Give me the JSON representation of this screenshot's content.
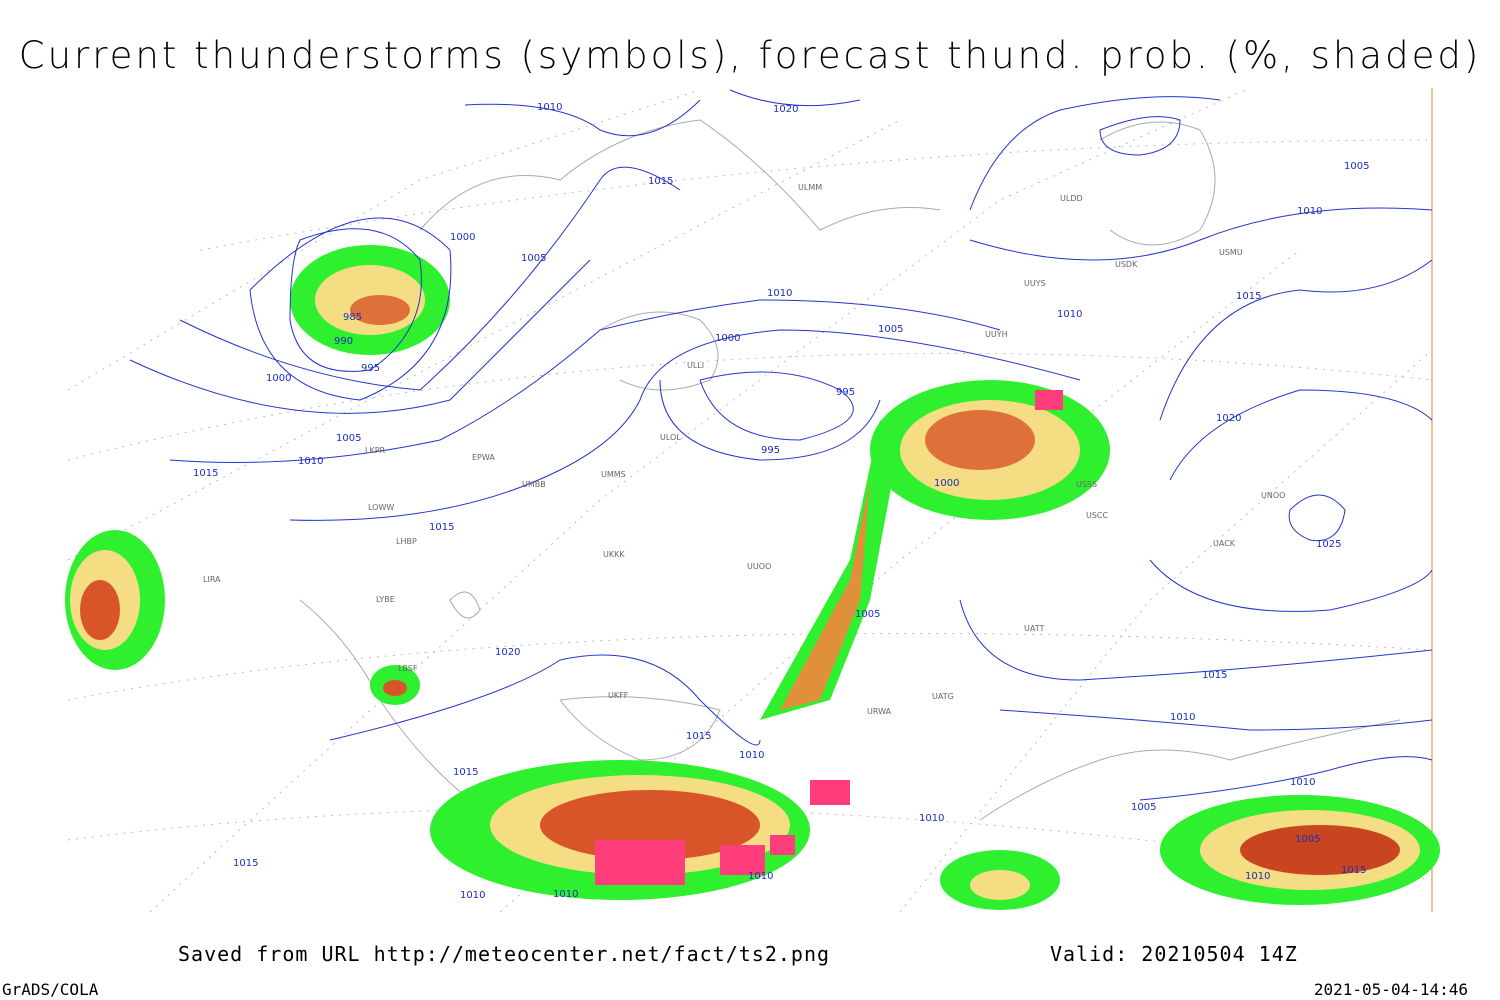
{
  "header": {
    "title": "Current thunderstorms (symbols), forecast thund. prob. (%, shaded)"
  },
  "isobar_labels": [
    "1010",
    "1020",
    "1015",
    "1000",
    "1005",
    "985",
    "990",
    "995",
    "1000",
    "1005",
    "1010",
    "1015",
    "1015",
    "1010",
    "1005",
    "1010",
    "1000",
    "995",
    "995",
    "1000",
    "1005",
    "1020",
    "1015",
    "1010",
    "1015",
    "1015",
    "1010",
    "1010",
    "1010",
    "1010",
    "1005",
    "1010",
    "1015",
    "1020",
    "1015",
    "1010",
    "1005",
    "1025",
    "1010",
    "1015",
    "1005",
    "1010"
  ],
  "stations": [
    "ULMM",
    "ULDD",
    "USDK",
    "USMU",
    "UUYS",
    "UUYH",
    "ULLI",
    "ULOL",
    "UMMS",
    "UMBB",
    "EPWA",
    "LKPR",
    "LOWW",
    "LHBP",
    "LIRA",
    "LYBE",
    "LBSF",
    "UKKK",
    "UUOO",
    "UKFF",
    "URWA",
    "UATG",
    "UACK",
    "UNOO",
    "USSS",
    "USCC",
    "UATT"
  ],
  "footer": {
    "source": "Saved from URL http://meteocenter.net/fact/ts2.png",
    "valid": "Valid: 20210504 14Z",
    "software": "GrADS/COLA",
    "timestamp": "2021-05-04-14:46"
  }
}
